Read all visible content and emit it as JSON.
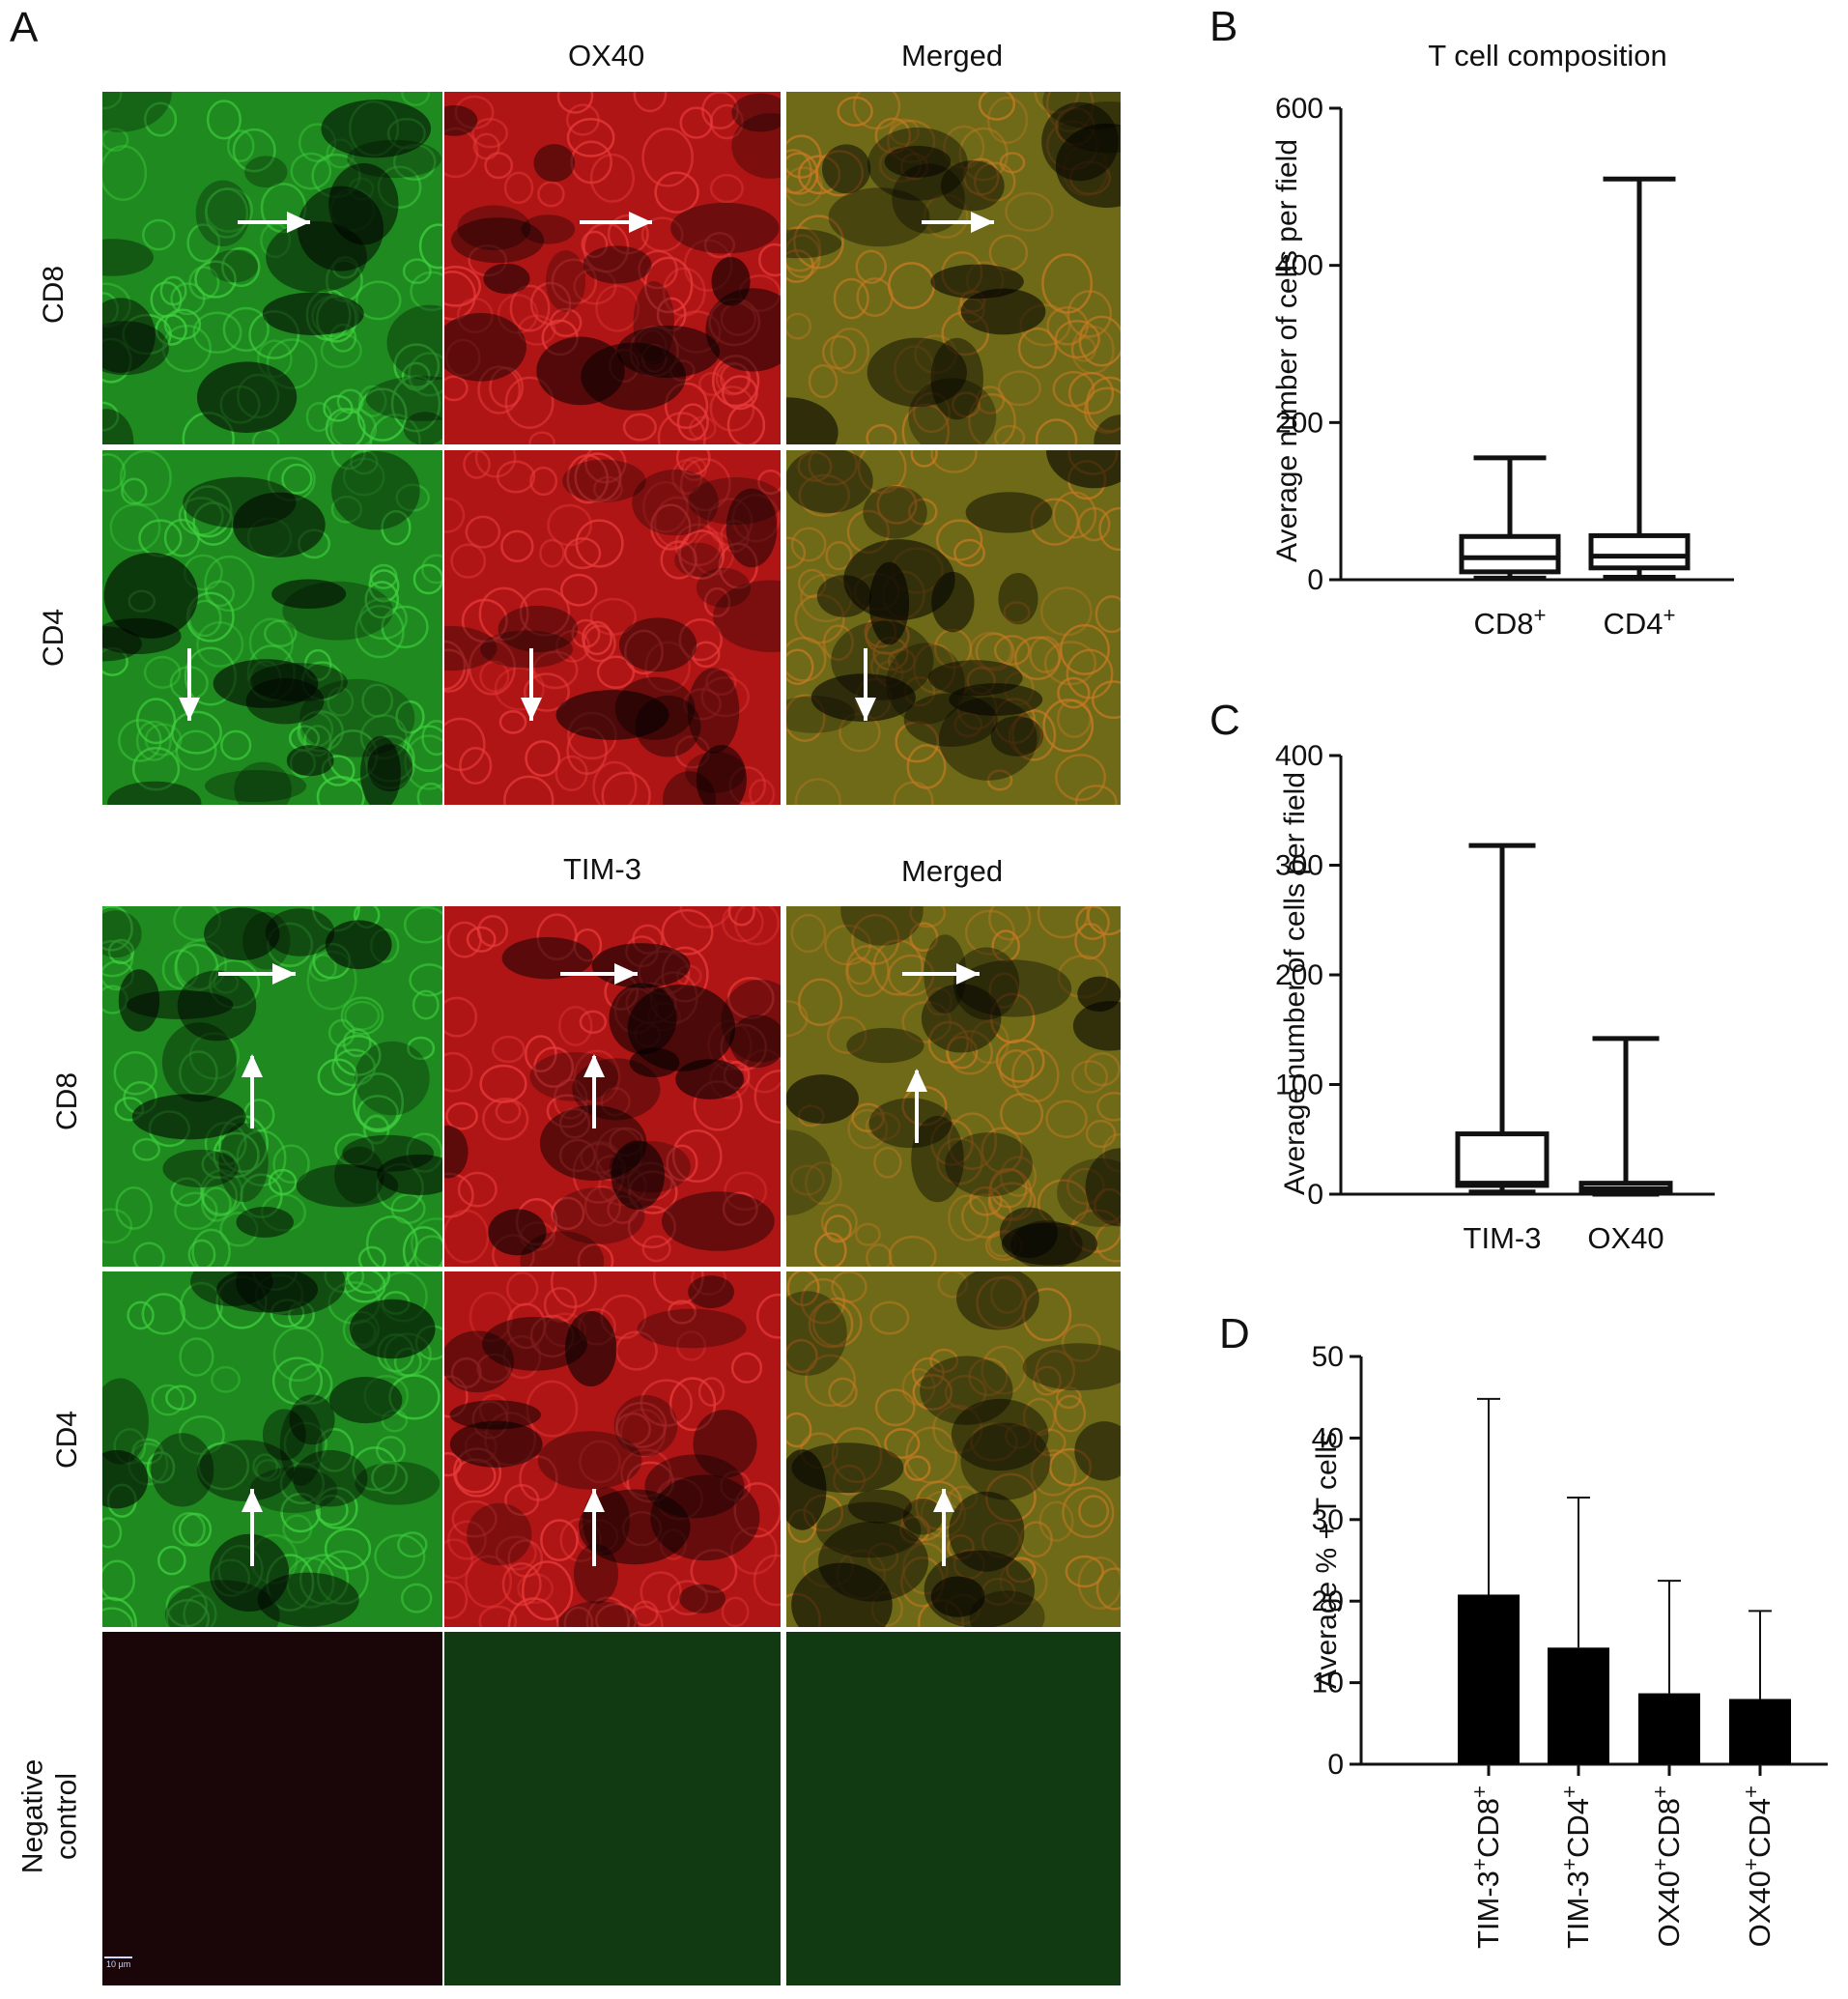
{
  "panel_a": {
    "letter": "A",
    "top_headers": [
      "OX40",
      "Merged"
    ],
    "bottom_headers": [
      "TIM-3",
      "Merged"
    ],
    "top_rows": [
      "CD8",
      "CD4"
    ],
    "bottom_rows": [
      "CD8",
      "CD4",
      "Negative control"
    ],
    "scale_bar": "10 µm",
    "colors": {
      "green": "#1f8a1f",
      "red": "#b01515",
      "merged": "#6e6a18",
      "negative": "#1a0508",
      "negative_green": "#123a12"
    }
  },
  "chart_data": [
    {
      "panel": "B",
      "type": "box",
      "title": "T cell composition",
      "ylabel": "Average number of cells per field",
      "ylim": [
        0,
        600
      ],
      "yticks": [
        0,
        200,
        400,
        600
      ],
      "categories": [
        "CD8+",
        "CD4+"
      ],
      "boxes": [
        {
          "min": 2,
          "q1": 10,
          "median": 28,
          "q3": 55,
          "max": 155
        },
        {
          "min": 3,
          "q1": 15,
          "median": 30,
          "q3": 56,
          "max": 510
        }
      ]
    },
    {
      "panel": "C",
      "type": "box",
      "title": "",
      "ylabel": "Average number of cells per field",
      "ylim": [
        0,
        400
      ],
      "yticks": [
        0,
        100,
        200,
        300,
        400
      ],
      "categories": [
        "TIM-3",
        "OX40"
      ],
      "boxes": [
        {
          "min": 2,
          "q1": 8,
          "median": 10,
          "q3": 55,
          "max": 318
        },
        {
          "min": 0,
          "q1": 3,
          "median": 5,
          "q3": 10,
          "max": 142
        }
      ]
    },
    {
      "panel": "D",
      "type": "bar",
      "title": "",
      "ylabel": "Average % + T cells",
      "ylim": [
        0,
        50
      ],
      "yticks": [
        0,
        10,
        20,
        30,
        40,
        50
      ],
      "categories": [
        "TIM-3+CD8+",
        "TIM-3+CD4+",
        "OX40+CD8+",
        "OX40+CD4+"
      ],
      "values": [
        20.8,
        14.3,
        8.7,
        8.0
      ],
      "errors": [
        24.0,
        18.4,
        13.8,
        10.8
      ]
    }
  ]
}
